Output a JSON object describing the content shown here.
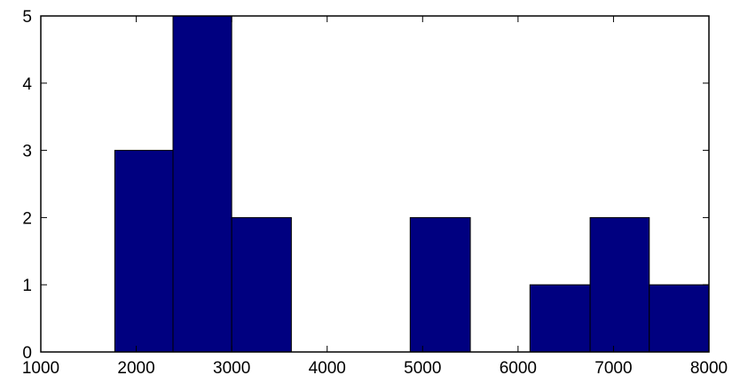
{
  "chart_data": {
    "type": "bar",
    "title": "",
    "xlabel": "",
    "ylabel": "",
    "xlim": [
      1000,
      8000
    ],
    "ylim": [
      0,
      5
    ],
    "grid": false,
    "bar_color": "#000080",
    "edge_color": "#000000",
    "bins": [
      {
        "x0": 1775,
        "x1": 2385,
        "value": 3
      },
      {
        "x0": 2385,
        "x1": 3000,
        "value": 5
      },
      {
        "x0": 3000,
        "x1": 3625,
        "value": 2
      },
      {
        "x0": 3625,
        "x1": 4245,
        "value": 0
      },
      {
        "x0": 4245,
        "x1": 4870,
        "value": 0
      },
      {
        "x0": 4870,
        "x1": 5500,
        "value": 2
      },
      {
        "x0": 5500,
        "x1": 6125,
        "value": 0
      },
      {
        "x0": 6125,
        "x1": 6755,
        "value": 1
      },
      {
        "x0": 6755,
        "x1": 7375,
        "value": 2
      },
      {
        "x0": 7375,
        "x1": 8000,
        "value": 1
      }
    ],
    "x_ticks": [
      1000,
      2000,
      3000,
      4000,
      5000,
      6000,
      7000,
      8000
    ],
    "x_tick_labels": [
      "1000",
      "2000",
      "3000",
      "4000",
      "5000",
      "6000",
      "7000",
      "8000"
    ],
    "y_ticks": [
      0,
      1,
      2,
      3,
      4,
      5
    ],
    "y_tick_labels": [
      "0",
      "1",
      "2",
      "3",
      "4",
      "5"
    ]
  }
}
